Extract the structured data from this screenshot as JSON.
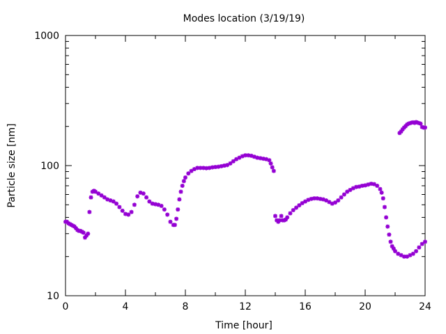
{
  "chart_data": {
    "type": "scatter",
    "title": "Modes location (3/19/19)",
    "xlabel": "Time [hour]",
    "ylabel": "Particle size [nm]",
    "xlim": [
      0,
      24
    ],
    "ylim": [
      10,
      1000
    ],
    "yscale": "log",
    "xticks": [
      0,
      4,
      8,
      12,
      16,
      20,
      24
    ],
    "xtick_labels": [
      "0",
      "4",
      "8",
      "12",
      "16",
      "20",
      "24"
    ],
    "yticks": [
      10,
      100,
      1000
    ],
    "ytick_labels": [
      "10",
      "100",
      "1000"
    ],
    "grid": false,
    "legend": "none",
    "marker_color": "#9400d3",
    "series": [
      {
        "points": [
          [
            0.0,
            37
          ],
          [
            0.1,
            37
          ],
          [
            0.2,
            36
          ],
          [
            0.3,
            35.5
          ],
          [
            0.4,
            35
          ],
          [
            0.5,
            34.5
          ],
          [
            0.6,
            34
          ],
          [
            0.7,
            33
          ],
          [
            0.8,
            32
          ],
          [
            0.9,
            31.5
          ],
          [
            1.0,
            31.5
          ],
          [
            1.1,
            31
          ],
          [
            1.2,
            30.5
          ],
          [
            1.3,
            28
          ],
          [
            1.4,
            29
          ],
          [
            1.5,
            30
          ],
          [
            1.6,
            44
          ],
          [
            1.7,
            57
          ],
          [
            1.8,
            63
          ],
          [
            1.9,
            64
          ],
          [
            2.0,
            63
          ],
          [
            2.2,
            61
          ],
          [
            2.4,
            59
          ],
          [
            2.6,
            57
          ],
          [
            2.8,
            55
          ],
          [
            3.0,
            54
          ],
          [
            3.2,
            53
          ],
          [
            3.4,
            51
          ],
          [
            3.6,
            48
          ],
          [
            3.8,
            45
          ],
          [
            4.0,
            42.5
          ],
          [
            4.2,
            42
          ],
          [
            4.4,
            44
          ],
          [
            4.6,
            50
          ],
          [
            4.8,
            58
          ],
          [
            5.0,
            62
          ],
          [
            5.2,
            61
          ],
          [
            5.4,
            57
          ],
          [
            5.6,
            53
          ],
          [
            5.8,
            51
          ],
          [
            6.0,
            50.5
          ],
          [
            6.2,
            50
          ],
          [
            6.4,
            49
          ],
          [
            6.6,
            46
          ],
          [
            6.8,
            42
          ],
          [
            7.0,
            37
          ],
          [
            7.2,
            35
          ],
          [
            7.3,
            35
          ],
          [
            7.4,
            39
          ],
          [
            7.5,
            46
          ],
          [
            7.6,
            55
          ],
          [
            7.7,
            63
          ],
          [
            7.8,
            70
          ],
          [
            7.9,
            76
          ],
          [
            8.0,
            81
          ],
          [
            8.2,
            87
          ],
          [
            8.4,
            91
          ],
          [
            8.6,
            94
          ],
          [
            8.8,
            96
          ],
          [
            9.0,
            96
          ],
          [
            9.2,
            96
          ],
          [
            9.4,
            95.5
          ],
          [
            9.6,
            96
          ],
          [
            9.8,
            97
          ],
          [
            10.0,
            97.5
          ],
          [
            10.2,
            98
          ],
          [
            10.4,
            99
          ],
          [
            10.6,
            100
          ],
          [
            10.8,
            101
          ],
          [
            11.0,
            104
          ],
          [
            11.2,
            108
          ],
          [
            11.4,
            112
          ],
          [
            11.6,
            115
          ],
          [
            11.8,
            118
          ],
          [
            12.0,
            120
          ],
          [
            12.2,
            120
          ],
          [
            12.4,
            119
          ],
          [
            12.6,
            117
          ],
          [
            12.8,
            115
          ],
          [
            13.0,
            114
          ],
          [
            13.2,
            113
          ],
          [
            13.4,
            112
          ],
          [
            13.6,
            110
          ],
          [
            13.7,
            104
          ],
          [
            13.8,
            97
          ],
          [
            13.9,
            91
          ],
          [
            14.0,
            41
          ],
          [
            14.1,
            38
          ],
          [
            14.2,
            37
          ],
          [
            14.3,
            38
          ],
          [
            14.4,
            41
          ],
          [
            14.5,
            38
          ],
          [
            14.6,
            38
          ],
          [
            14.7,
            38.5
          ],
          [
            14.8,
            40
          ],
          [
            15.0,
            43
          ],
          [
            15.2,
            45.5
          ],
          [
            15.4,
            47.5
          ],
          [
            15.6,
            49.5
          ],
          [
            15.8,
            51.5
          ],
          [
            16.0,
            53
          ],
          [
            16.2,
            54.5
          ],
          [
            16.4,
            55.5
          ],
          [
            16.6,
            56
          ],
          [
            16.8,
            56
          ],
          [
            17.0,
            55.5
          ],
          [
            17.2,
            55
          ],
          [
            17.4,
            54
          ],
          [
            17.6,
            52.5
          ],
          [
            17.8,
            51
          ],
          [
            18.0,
            52
          ],
          [
            18.2,
            54
          ],
          [
            18.4,
            57
          ],
          [
            18.6,
            60
          ],
          [
            18.8,
            63
          ],
          [
            19.0,
            65
          ],
          [
            19.2,
            67
          ],
          [
            19.4,
            68.5
          ],
          [
            19.6,
            69
          ],
          [
            19.8,
            70
          ],
          [
            20.0,
            70.5
          ],
          [
            20.2,
            71.5
          ],
          [
            20.4,
            72.5
          ],
          [
            20.6,
            72
          ],
          [
            20.8,
            70
          ],
          [
            21.0,
            66
          ],
          [
            21.1,
            62
          ],
          [
            21.2,
            56
          ],
          [
            21.3,
            48
          ],
          [
            21.4,
            40
          ],
          [
            21.5,
            34
          ],
          [
            21.6,
            29.5
          ],
          [
            21.7,
            26
          ],
          [
            21.8,
            24
          ],
          [
            21.9,
            23
          ],
          [
            22.0,
            22
          ],
          [
            22.2,
            21
          ],
          [
            22.4,
            20.5
          ],
          [
            22.6,
            20
          ],
          [
            22.8,
            20
          ],
          [
            23.0,
            20.5
          ],
          [
            23.2,
            21
          ],
          [
            23.4,
            22
          ],
          [
            23.6,
            23.5
          ],
          [
            23.8,
            25
          ],
          [
            24.0,
            26
          ],
          [
            22.3,
            178
          ],
          [
            22.4,
            183
          ],
          [
            22.5,
            190
          ],
          [
            22.6,
            196
          ],
          [
            22.7,
            201
          ],
          [
            22.8,
            207
          ],
          [
            22.9,
            210
          ],
          [
            23.0,
            212
          ],
          [
            23.1,
            214
          ],
          [
            23.2,
            215
          ],
          [
            23.3,
            213
          ],
          [
            23.4,
            216
          ],
          [
            23.5,
            214
          ],
          [
            23.6,
            212
          ],
          [
            23.7,
            210
          ],
          [
            23.8,
            198
          ],
          [
            23.9,
            196
          ],
          [
            24.0,
            196
          ]
        ]
      }
    ]
  }
}
